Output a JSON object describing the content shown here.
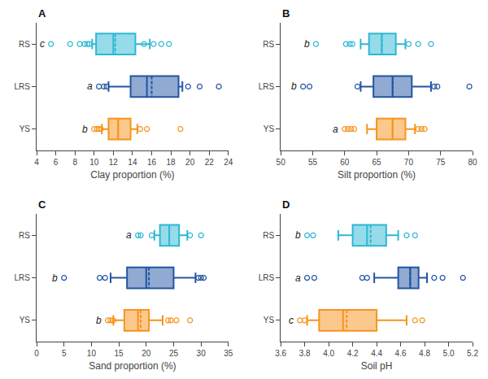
{
  "chart_data": [
    {
      "type": "box",
      "orientation": "horizontal",
      "title": "A",
      "x_label": "Clay proportion (%)",
      "categories": [
        "RS",
        "LRS",
        "YS"
      ],
      "xlim": [
        4,
        24
      ],
      "xticks": [
        4,
        6,
        8,
        10,
        12,
        14,
        16,
        18,
        20,
        22,
        24
      ],
      "grid": false,
      "series": [
        {
          "name": "RS",
          "color": "#2EB8D4",
          "q1": 10.2,
          "median": 12.0,
          "q3": 14.3,
          "mean": 12.2,
          "whisker_low": 9.8,
          "whisker_high": 15.8,
          "outliers": [
            5.5,
            7.5,
            8.5,
            9.0,
            9.3,
            9.5,
            15.2,
            16.2,
            17.0,
            17.8
          ],
          "label": "c"
        },
        {
          "name": "LRS",
          "color": "#2255A4",
          "q1": 13.8,
          "median": 15.5,
          "q3": 18.8,
          "mean": 16.0,
          "whisker_low": 11.5,
          "whisker_high": 19.2,
          "outliers": [
            10.5,
            11.0,
            11.3,
            19.8,
            21.0,
            23.0
          ],
          "label": "a"
        },
        {
          "name": "YS",
          "color": "#F7941D",
          "q1": 11.5,
          "median": 12.5,
          "q3": 13.8,
          "mean": 12.5,
          "whisker_low": 10.8,
          "whisker_high": 14.5,
          "outliers": [
            10.0,
            10.3,
            10.5,
            10.7,
            14.8,
            15.5,
            19.0
          ],
          "label": "b"
        }
      ]
    },
    {
      "type": "box",
      "orientation": "horizontal",
      "title": "B",
      "x_label": "Silt proportion (%)",
      "categories": [
        "RS",
        "LRS",
        "YS"
      ],
      "xlim": [
        50,
        80
      ],
      "xticks": [
        50,
        55,
        60,
        65,
        70,
        75,
        80
      ],
      "grid": false,
      "series": [
        {
          "name": "RS",
          "color": "#2EB8D4",
          "q1": 63.8,
          "median": 65.8,
          "q3": 68.0,
          "mean": 65.8,
          "whisker_low": 62.5,
          "whisker_high": 69.5,
          "outliers": [
            55.5,
            60.2,
            60.8,
            61.2,
            70.0,
            71.5,
            73.5
          ],
          "label": "b"
        },
        {
          "name": "LRS",
          "color": "#2255A4",
          "q1": 64.5,
          "median": 67.5,
          "q3": 70.5,
          "mean": 67.5,
          "whisker_low": 62.5,
          "whisker_high": 73.5,
          "outliers": [
            53.5,
            54.5,
            62.0,
            74.0,
            74.5,
            79.5
          ],
          "label": "b"
        },
        {
          "name": "YS",
          "color": "#F7941D",
          "q1": 65.0,
          "median": 67.5,
          "q3": 69.5,
          "mean": 67.5,
          "whisker_low": 63.5,
          "whisker_high": 71.0,
          "outliers": [
            60.0,
            60.5,
            61.0,
            61.5,
            71.5,
            72.0,
            72.5
          ],
          "label": "a"
        }
      ]
    },
    {
      "type": "box",
      "orientation": "horizontal",
      "title": "C",
      "x_label": "Sand proportion (%)",
      "categories": [
        "RS",
        "LRS",
        "YS"
      ],
      "xlim": [
        0,
        35
      ],
      "xticks": [
        0,
        5,
        10,
        15,
        20,
        25,
        30,
        35
      ],
      "grid": false,
      "series": [
        {
          "name": "RS",
          "color": "#2EB8D4",
          "q1": 22.5,
          "median": 24.2,
          "q3": 26.0,
          "mean": 24.2,
          "whisker_low": 21.5,
          "whisker_high": 27.5,
          "outliers": [
            18.5,
            19.0,
            21.0,
            28.0,
            30.0
          ],
          "label": "a"
        },
        {
          "name": "LRS",
          "color": "#2255A4",
          "q1": 16.5,
          "median": 20.0,
          "q3": 25.0,
          "mean": 20.5,
          "whisker_low": 13.5,
          "whisker_high": 29.0,
          "outliers": [
            5.0,
            11.5,
            12.5,
            29.5,
            30.0,
            30.5
          ],
          "label": "b"
        },
        {
          "name": "YS",
          "color": "#F7941D",
          "q1": 16.0,
          "median": 18.5,
          "q3": 20.5,
          "mean": 19.0,
          "whisker_low": 14.0,
          "whisker_high": 23.0,
          "outliers": [
            13.0,
            13.5,
            14.0,
            24.0,
            24.5,
            25.5,
            28.0
          ],
          "label": "b"
        }
      ]
    },
    {
      "type": "box",
      "orientation": "horizontal",
      "title": "D",
      "x_label": "Soil pH",
      "categories": [
        "RS",
        "LRS",
        "YS"
      ],
      "xlim": [
        3.6,
        5.2
      ],
      "xticks": [
        3.6,
        3.8,
        {
          "value": 4.0,
          "label": "4.0"
        },
        4.2,
        4.4,
        4.6,
        4.8,
        {
          "value": 5.0,
          "label": "5.0"
        },
        5.2
      ],
      "grid": false,
      "series": [
        {
          "name": "RS",
          "color": "#2EB8D4",
          "q1": 4.2,
          "median": 4.32,
          "q3": 4.48,
          "mean": 4.35,
          "whisker_low": 4.08,
          "whisker_high": 4.58,
          "outliers": [
            3.82,
            3.87,
            4.65,
            4.72
          ],
          "label": "b"
        },
        {
          "name": "LRS",
          "color": "#2255A4",
          "q1": 4.58,
          "median": 4.68,
          "q3": 4.75,
          "mean": 4.68,
          "whisker_low": 4.38,
          "whisker_high": 4.82,
          "outliers": [
            3.82,
            3.88,
            4.28,
            4.32,
            4.88,
            4.95,
            5.12
          ],
          "label": "a"
        },
        {
          "name": "YS",
          "color": "#F7941D",
          "q1": 3.92,
          "median": 4.12,
          "q3": 4.4,
          "mean": 4.15,
          "whisker_low": 3.82,
          "whisker_high": 4.65,
          "outliers": [
            3.76,
            3.8,
            4.72,
            4.78
          ],
          "label": "c"
        }
      ]
    }
  ]
}
